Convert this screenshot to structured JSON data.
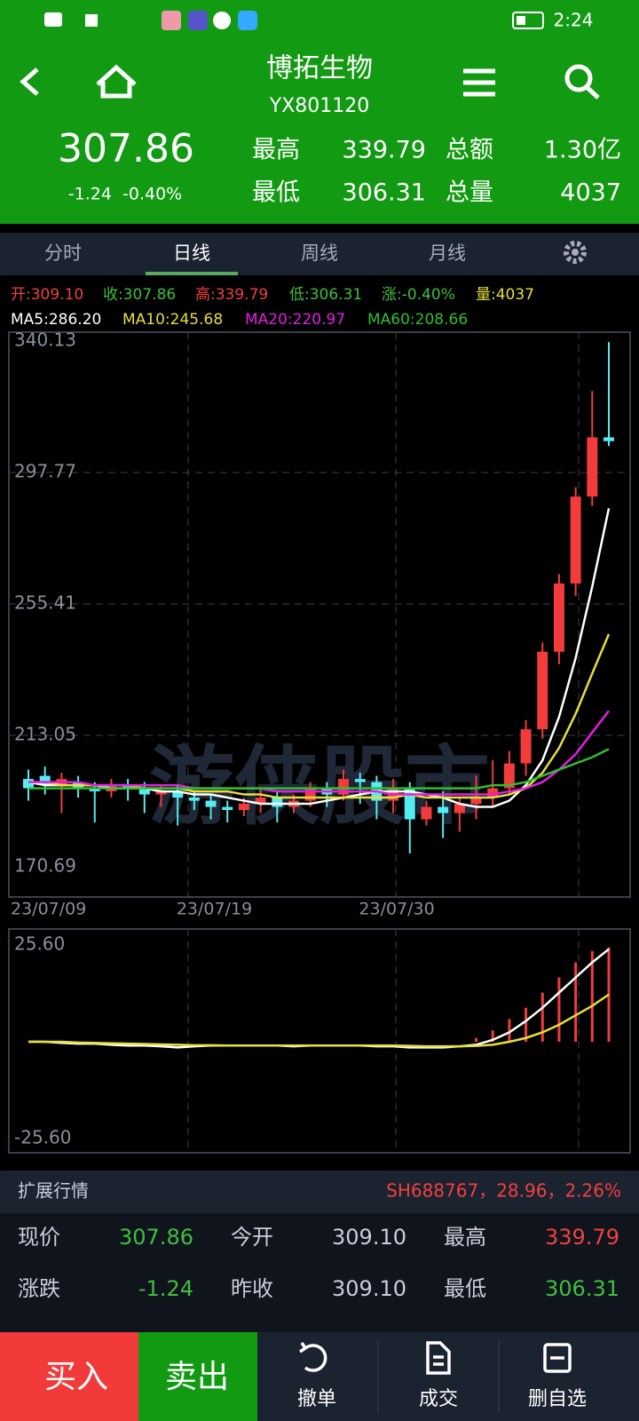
{
  "status_bar": {
    "time": "2:24"
  },
  "header": {
    "name": "博拓生物",
    "code": "YX801120",
    "price": "307.86",
    "change": "-1.24",
    "change_pct": "-0.40%",
    "stats": [
      {
        "label": "最高",
        "value": "339.79"
      },
      {
        "label": "总额",
        "value": "1.30亿"
      },
      {
        "label": "最低",
        "value": "306.31"
      },
      {
        "label": "总量",
        "value": "4037"
      }
    ]
  },
  "tabs": [
    "分时",
    "日线",
    "周线",
    "月线"
  ],
  "quote_line": [
    "开:309.10",
    "收:307.86",
    "高:339.79",
    "低:306.31",
    "涨:-0.40%",
    "量:4037"
  ],
  "ma_line": [
    "MA5:286.20",
    "MA10:245.68",
    "MA20:220.97",
    "MA60:208.66"
  ],
  "watermark": "游侠股市",
  "chart_data": [
    {
      "type": "candlestick",
      "up_color": "#f23c3c",
      "down_color": "#54ecf0",
      "categories": [
        "23/07/09",
        null,
        null,
        null,
        null,
        null,
        null,
        null,
        null,
        null,
        "23/07/19",
        null,
        null,
        null,
        null,
        null,
        null,
        null,
        null,
        null,
        null,
        "23/07/30",
        null,
        null,
        null,
        null,
        null,
        null,
        null,
        null,
        null,
        null,
        null,
        null,
        null,
        null
      ],
      "open": [
        199,
        200,
        197,
        198,
        196,
        195,
        197,
        196,
        194,
        195,
        193,
        192,
        190,
        189,
        191,
        193,
        190,
        192,
        196,
        194,
        199,
        198,
        192,
        196,
        186,
        190,
        188,
        191,
        193,
        196,
        204,
        215,
        240,
        262,
        290,
        309.1
      ],
      "close": [
        196,
        197,
        199,
        196,
        195,
        197,
        196,
        194,
        195,
        193,
        192,
        190,
        189,
        191,
        193,
        190,
        192,
        196,
        194,
        199,
        198,
        192,
        196,
        186,
        190,
        188,
        191,
        193,
        196,
        204,
        215,
        240,
        262,
        290,
        309.1,
        307.86
      ],
      "high": [
        202,
        203,
        201,
        200,
        198,
        199,
        199,
        198,
        197,
        197,
        195,
        194,
        192,
        193,
        196,
        195,
        194,
        198,
        198,
        202,
        201,
        200,
        199,
        198,
        192,
        195,
        193,
        200,
        205,
        208,
        218,
        243,
        265,
        293,
        324,
        339.79
      ],
      "low": [
        192,
        194,
        188,
        193,
        185,
        193,
        192,
        188,
        190,
        184,
        189,
        186,
        185,
        187,
        188,
        185,
        188,
        190,
        190,
        192,
        191,
        186,
        188,
        175,
        184,
        180,
        182,
        186,
        190,
        194,
        200,
        212,
        236,
        258,
        287,
        306.31
      ],
      "series": [
        {
          "color": "#ffffff",
          "values": [
            198,
            197,
            197,
            197,
            197,
            196,
            196,
            196,
            195,
            195,
            194,
            194,
            193,
            192,
            191,
            191,
            191,
            191,
            192,
            193,
            194,
            195,
            195,
            195,
            194,
            193,
            191,
            190,
            190,
            192,
            197,
            205,
            219,
            238,
            261,
            286.2
          ]
        },
        {
          "color": "#e6df3c",
          "values": [
            198,
            198,
            197,
            197,
            197,
            197,
            197,
            196,
            196,
            196,
            195,
            195,
            195,
            194,
            194,
            193,
            193,
            193,
            193,
            193,
            193,
            193,
            193,
            194,
            193,
            193,
            193,
            193,
            193,
            194,
            196,
            201,
            209,
            220,
            233,
            245.68
          ]
        },
        {
          "color": "#e21fe2",
          "values": [
            198,
            198,
            198,
            198,
            197,
            197,
            197,
            197,
            197,
            197,
            196,
            196,
            196,
            196,
            196,
            195,
            195,
            195,
            195,
            195,
            195,
            195,
            194,
            194,
            194,
            194,
            194,
            194,
            194,
            195,
            196,
            198,
            202,
            207,
            214,
            220.97
          ]
        },
        {
          "color": "#2fbf2f",
          "values": [
            196,
            196,
            196,
            196,
            196,
            196,
            196,
            196,
            196,
            196,
            196,
            196,
            196,
            196,
            196,
            196,
            196,
            196,
            196,
            196,
            196,
            196,
            196,
            196,
            196,
            196,
            196,
            196,
            197,
            197,
            198,
            200,
            202,
            204,
            206,
            208.66
          ]
        }
      ],
      "ylim": [
        170.69,
        340.13
      ],
      "yticks": [
        170.69,
        213.05,
        255.41,
        297.77,
        340.13
      ],
      "grid": true
    },
    {
      "type": "macd",
      "bar_color": "#f23c3c",
      "values": [
        0,
        0,
        0,
        0,
        0,
        0,
        0,
        0,
        0,
        0,
        0,
        0,
        0,
        0,
        0,
        0,
        0,
        0,
        0,
        0,
        0,
        0,
        0,
        0,
        0,
        0,
        0,
        1,
        3,
        6,
        9,
        13,
        17,
        21,
        24,
        25
      ],
      "series": [
        {
          "color": "#ffffff",
          "values": [
            0,
            0,
            -0.3,
            -0.5,
            -0.5,
            -0.8,
            -1,
            -1,
            -1.2,
            -1.5,
            -1.2,
            -1,
            -1,
            -1,
            -1,
            -1,
            -1.2,
            -1,
            -1,
            -1,
            -1,
            -1.2,
            -1.2,
            -1.5,
            -1.5,
            -1.5,
            -1.2,
            -0.8,
            0.5,
            2.5,
            5.5,
            9,
            13,
            17,
            21,
            24.5
          ]
        },
        {
          "color": "#e6df3c",
          "values": [
            0,
            0,
            0,
            -0.2,
            -0.3,
            -0.4,
            -0.5,
            -0.6,
            -0.7,
            -0.8,
            -0.9,
            -0.9,
            -1,
            -1,
            -1,
            -1,
            -1,
            -1,
            -1,
            -1,
            -1,
            -1,
            -1,
            -1.1,
            -1.2,
            -1.2,
            -1.2,
            -1.1,
            -0.8,
            0,
            1,
            2.5,
            4.5,
            7,
            9.5,
            12.5
          ]
        }
      ],
      "ylim": [
        -25.6,
        25.6
      ],
      "yticks": [
        {
          "value": -25.6,
          "label": "-25.60"
        },
        {
          "value": 25.6,
          "label": "25.60"
        }
      ]
    }
  ],
  "extension": {
    "title": "扩展行情",
    "quote": "SH688767，28.96，2.26%"
  },
  "table": {
    "rows": [
      [
        "现价",
        "307.86",
        "今开",
        "309.10",
        "最高",
        "339.79"
      ],
      [
        "涨跌",
        "-1.24",
        "昨收",
        "309.10",
        "最低",
        "306.31"
      ]
    ]
  },
  "bottom": {
    "buy": "买入",
    "sell": "卖出",
    "actions": [
      "撤单",
      "成交",
      "删自选"
    ]
  }
}
